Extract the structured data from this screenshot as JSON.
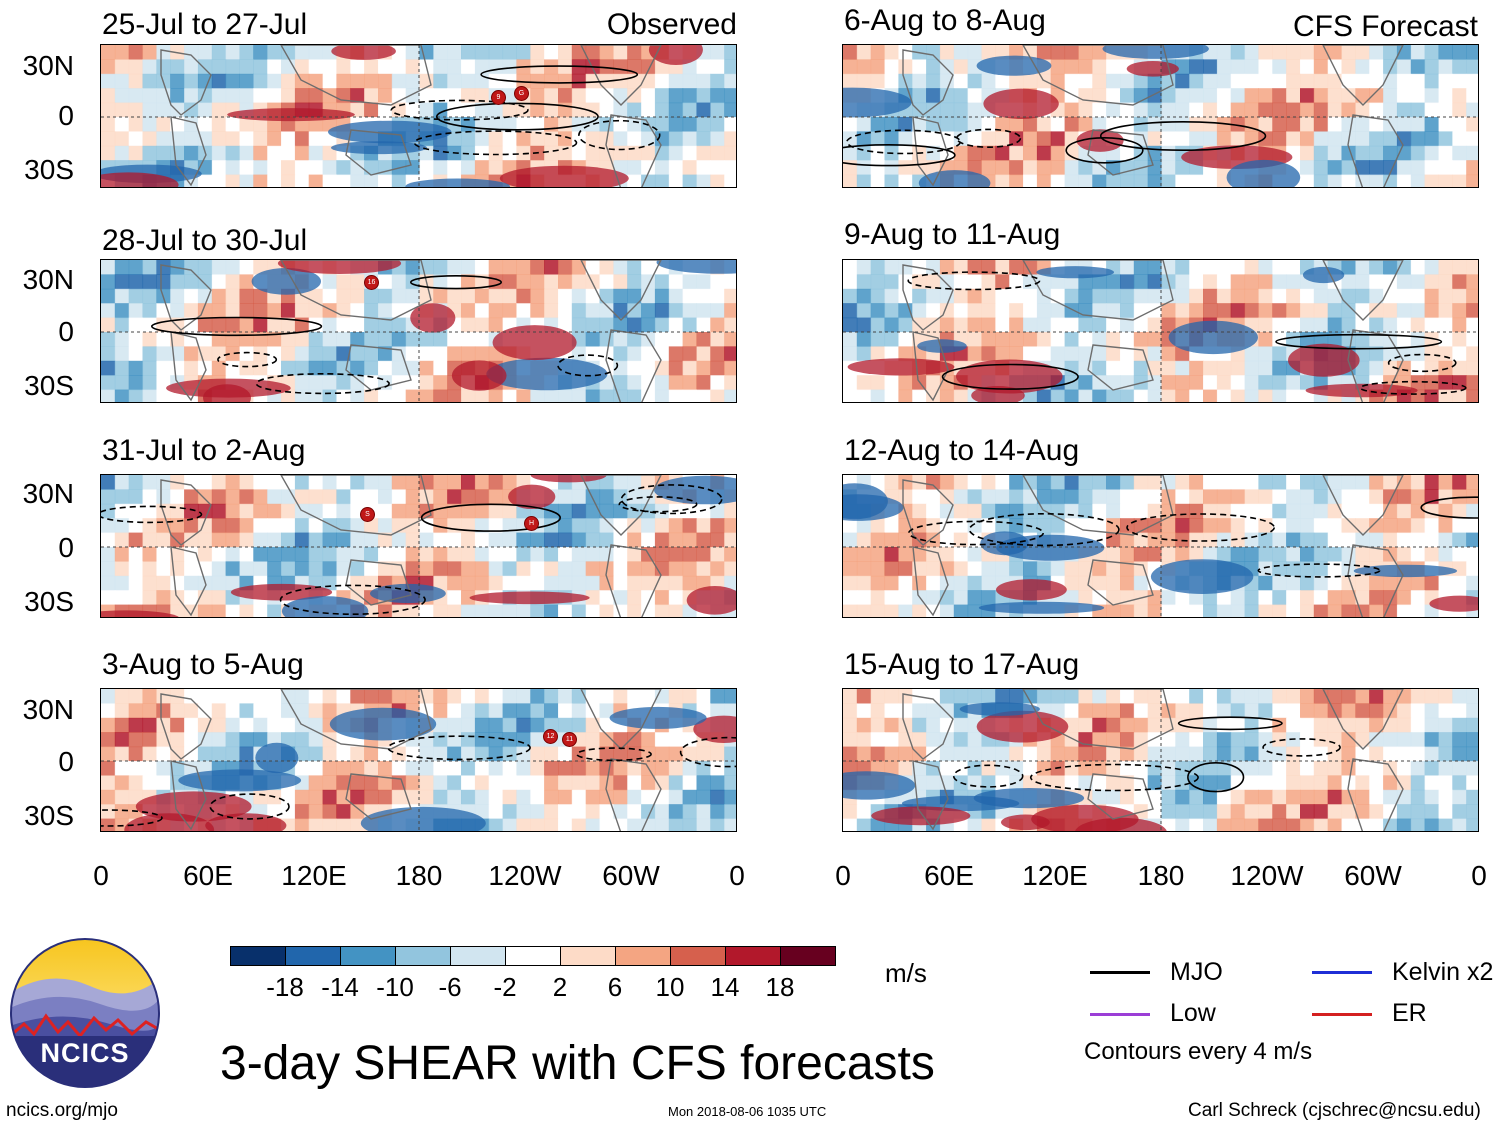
{
  "observed_label": "Observed",
  "forecast_label": "CFS Forecast",
  "panels_left": [
    {
      "title": "25-Jul to 27-Jul",
      "storms": [
        "9",
        "G"
      ]
    },
    {
      "title": "28-Jul to 30-Jul",
      "storms": [
        "16"
      ]
    },
    {
      "title": "31-Jul to 2-Aug",
      "storms": [
        "S",
        "H"
      ]
    },
    {
      "title": "3-Aug to 5-Aug",
      "storms": [
        "12",
        "11"
      ]
    }
  ],
  "panels_right": [
    {
      "title": "6-Aug to 8-Aug"
    },
    {
      "title": "9-Aug to 11-Aug"
    },
    {
      "title": "12-Aug to 14-Aug"
    },
    {
      "title": "15-Aug to 17-Aug"
    }
  ],
  "lat_labels": [
    "30N",
    "0",
    "30S"
  ],
  "lon_labels": [
    "0",
    "60E",
    "120E",
    "180",
    "120W",
    "60W",
    "0"
  ],
  "colorbar": {
    "colors": [
      "#08306b",
      "#2166ac",
      "#4393c3",
      "#92c5de",
      "#d1e5f0",
      "#ffffff",
      "#fddbc7",
      "#f4a582",
      "#d6604d",
      "#b2182b",
      "#67001f"
    ],
    "labels": [
      "-18",
      "-14",
      "-10",
      "-6",
      "-2",
      "2",
      "6",
      "10",
      "14",
      "18"
    ],
    "units": "m/s"
  },
  "legend": {
    "items": [
      {
        "label": "MJO",
        "color": "#000000"
      },
      {
        "label": "Kelvin x2",
        "color": "#1f2fd6"
      },
      {
        "label": "Low",
        "color": "#9b3ed6"
      },
      {
        "label": "ER",
        "color": "#d42020"
      }
    ],
    "note": "Contours every 4 m/s"
  },
  "logo_text": "NCICS",
  "main_title": "3-day SHEAR with CFS forecasts",
  "footer": {
    "url": "ncics.org/mjo",
    "timestamp": "Mon 2018-08-06 1035 UTC",
    "author": "Carl Schreck (cjschrec@ncsu.edu)"
  }
}
